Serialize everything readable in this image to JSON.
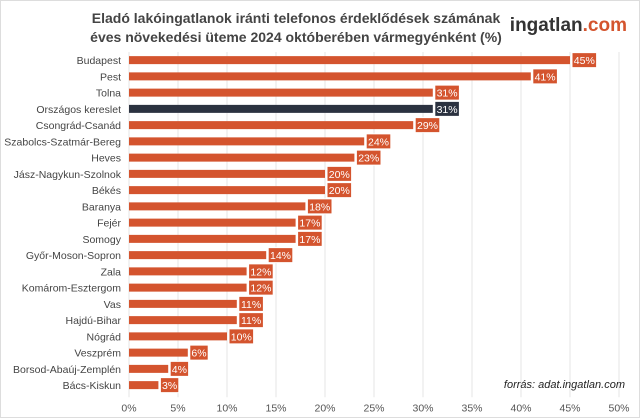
{
  "title_line1": "Eladó lakóingatlanok iránti telefonos érdeklődések számának",
  "title_line2": "éves növekedési üteme 2024 októberében vármegyénként (%)",
  "logo": {
    "text_main": "ingatlan",
    "text_accent": ".com"
  },
  "source": "forrás: adat.ingatlan.com",
  "colors": {
    "bar": "#d4542e",
    "highlight": "#2b3240",
    "grid": "#e6e6e6"
  },
  "chart_data": {
    "type": "bar",
    "orientation": "horizontal",
    "categories": [
      "Budapest",
      "Pest",
      "Tolna",
      "Országos kereslet",
      "Csongrád-Csanád",
      "Szabolcs-Szatmár-Bereg",
      "Heves",
      "Jász-Nagykun-Szolnok",
      "Békés",
      "Baranya",
      "Fejér",
      "Somogy",
      "Győr-Moson-Sopron",
      "Zala",
      "Komárom-Esztergom",
      "Vas",
      "Hajdú-Bihar",
      "Nógrád",
      "Veszprém",
      "Borsod-Abaúj-Zemplén",
      "Bács-Kiskun"
    ],
    "values": [
      45,
      41,
      31,
      31,
      29,
      24,
      23,
      20,
      20,
      18,
      17,
      17,
      14,
      12,
      12,
      11,
      11,
      10,
      6,
      4,
      3
    ],
    "labels": [
      "45%",
      "41%",
      "31%",
      "31%",
      "29%",
      "24%",
      "23%",
      "20%",
      "20%",
      "18%",
      "17%",
      "17%",
      "14%",
      "12%",
      "12%",
      "11%",
      "11%",
      "10%",
      "6%",
      "4%",
      "3%"
    ],
    "highlight": "Országos kereslet",
    "xlim": [
      0,
      50
    ],
    "xticks": [
      "0%",
      "5%",
      "10%",
      "15%",
      "20%",
      "25%",
      "30%",
      "35%",
      "40%",
      "45%",
      "50%"
    ],
    "grid": true
  }
}
